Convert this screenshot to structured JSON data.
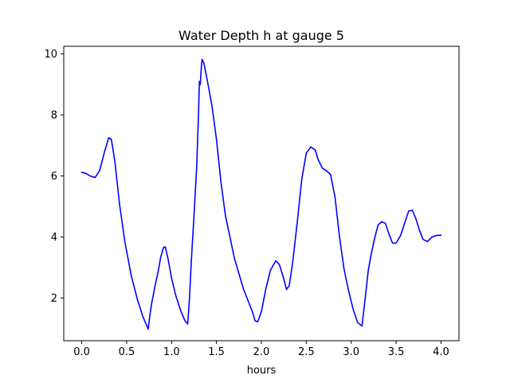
{
  "chart_data": {
    "type": "line",
    "title": "Water Depth h at gauge 5",
    "xlabel": "hours",
    "ylabel": "",
    "xlim": [
      -0.2,
      4.2
    ],
    "ylim": [
      0.6,
      10.25
    ],
    "xticks": [
      0.0,
      0.5,
      1.0,
      1.5,
      2.0,
      2.5,
      3.0,
      3.5,
      4.0
    ],
    "xtick_labels": [
      "0.0",
      "0.5",
      "1.0",
      "1.5",
      "2.0",
      "2.5",
      "3.0",
      "3.5",
      "4.0"
    ],
    "yticks": [
      2,
      4,
      6,
      8,
      10
    ],
    "ytick_labels": [
      "2",
      "4",
      "6",
      "8",
      "10"
    ],
    "grid": false,
    "legend": "none",
    "series": [
      {
        "color": "#0000ff",
        "x": [
          0.0,
          0.05,
          0.1,
          0.15,
          0.2,
          0.25,
          0.3,
          0.33,
          0.37,
          0.42,
          0.48,
          0.55,
          0.62,
          0.68,
          0.74,
          0.76,
          0.78,
          0.8,
          0.82,
          0.85,
          0.88,
          0.91,
          0.93,
          0.96,
          1.0,
          1.05,
          1.1,
          1.15,
          1.18,
          1.2,
          1.22,
          1.25,
          1.28,
          1.3,
          1.31,
          1.32,
          1.33,
          1.34,
          1.36,
          1.4,
          1.45,
          1.5,
          1.55,
          1.6,
          1.7,
          1.8,
          1.9,
          1.93,
          1.96,
          2.0,
          2.05,
          2.1,
          2.16,
          2.2,
          2.25,
          2.28,
          2.31,
          2.35,
          2.4,
          2.45,
          2.5,
          2.55,
          2.6,
          2.63,
          2.68,
          2.72,
          2.77,
          2.82,
          2.87,
          2.92,
          2.97,
          3.02,
          3.07,
          3.12,
          3.16,
          3.19,
          3.22,
          3.26,
          3.3,
          3.34,
          3.38,
          3.42,
          3.46,
          3.5,
          3.55,
          3.6,
          3.64,
          3.68,
          3.72,
          3.76,
          3.8,
          3.85,
          3.9,
          3.95,
          4.0
        ],
        "y": [
          6.12,
          6.08,
          5.99,
          5.95,
          6.18,
          6.75,
          7.25,
          7.2,
          6.45,
          5.1,
          3.85,
          2.75,
          1.95,
          1.4,
          0.98,
          1.45,
          1.85,
          2.15,
          2.45,
          2.85,
          3.35,
          3.65,
          3.68,
          3.3,
          2.65,
          2.05,
          1.6,
          1.25,
          1.15,
          2.0,
          3.2,
          4.7,
          6.3,
          8.0,
          9.1,
          9.0,
          9.5,
          9.82,
          9.7,
          9.1,
          8.3,
          7.2,
          5.8,
          4.7,
          3.3,
          2.3,
          1.55,
          1.25,
          1.22,
          1.55,
          2.3,
          2.9,
          3.22,
          3.1,
          2.62,
          2.28,
          2.4,
          3.2,
          4.5,
          5.9,
          6.75,
          6.95,
          6.85,
          6.55,
          6.25,
          6.18,
          6.05,
          5.3,
          4.0,
          2.95,
          2.25,
          1.65,
          1.2,
          1.08,
          2.1,
          2.9,
          3.4,
          3.95,
          4.4,
          4.5,
          4.45,
          4.1,
          3.8,
          3.8,
          4.05,
          4.5,
          4.85,
          4.88,
          4.6,
          4.22,
          3.92,
          3.85,
          4.0,
          4.05,
          4.06
        ]
      }
    ]
  }
}
